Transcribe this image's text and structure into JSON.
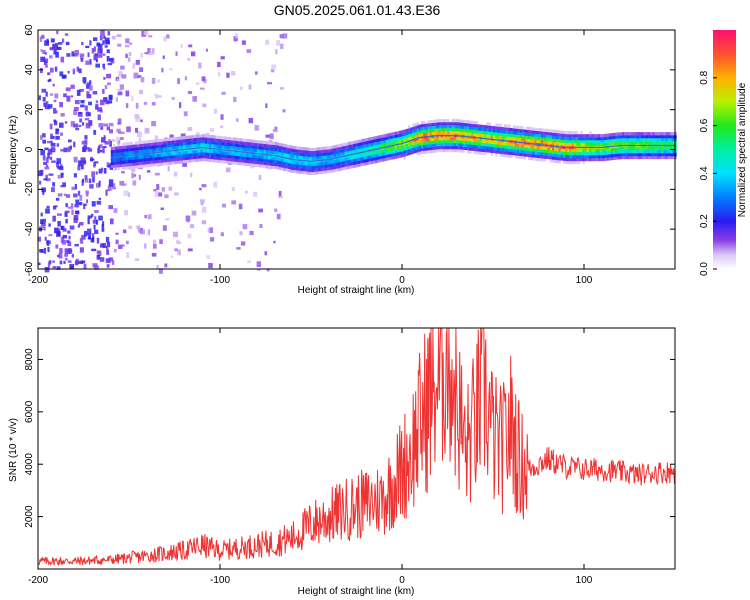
{
  "title": "GN05.2025.061.01.43.E36",
  "chart_data": [
    {
      "type": "heatmap",
      "xlabel": "Height of straight line (km)",
      "ylabel": "Frequency (Hz)",
      "xlim": [
        -200,
        150
      ],
      "ylim": [
        -60,
        60
      ],
      "xticks": [
        -200,
        -100,
        0,
        100
      ],
      "yticks": [
        -60,
        -40,
        -20,
        0,
        20,
        40,
        60
      ],
      "colorbar": {
        "label": "Normalized spectral amplitude",
        "range": [
          0,
          1
        ],
        "ticks": [
          0.0,
          0.2,
          0.4,
          0.6,
          0.8
        ]
      },
      "ridge": {
        "x": [
          -160,
          -150,
          -140,
          -130,
          -120,
          -110,
          -100,
          -90,
          -80,
          -70,
          -60,
          -50,
          -40,
          -30,
          -20,
          -10,
          0,
          10,
          20,
          30,
          40,
          50,
          60,
          70,
          80,
          90,
          100,
          110,
          120,
          130,
          140,
          150
        ],
        "y": [
          -4,
          -3,
          -2,
          -1,
          0,
          1,
          0,
          -1,
          -2,
          -3,
          -5,
          -6,
          -5,
          -3,
          -1,
          1,
          3,
          6,
          7,
          7,
          6,
          5,
          4,
          3,
          2,
          1,
          1,
          1,
          2,
          2,
          2,
          2
        ],
        "peak_amplitude": [
          0.3,
          0.35,
          0.35,
          0.4,
          0.45,
          0.45,
          0.4,
          0.4,
          0.4,
          0.45,
          0.45,
          0.45,
          0.4,
          0.45,
          0.55,
          0.65,
          0.75,
          0.95,
          0.95,
          0.95,
          0.9,
          0.85,
          0.9,
          0.95,
          0.95,
          0.95,
          0.8,
          0.7,
          0.7,
          0.7,
          0.65,
          0.6
        ]
      }
    },
    {
      "type": "line",
      "xlabel": "Height of straight line (km)",
      "ylabel": "SNR (10 * v/v)",
      "xlim": [
        -200,
        150
      ],
      "ylim": [
        0,
        9200
      ],
      "xticks": [
        -200,
        -100,
        0,
        100
      ],
      "yticks": [
        2000,
        4000,
        6000,
        8000
      ],
      "color": "#ee3333",
      "series": [
        {
          "x": [
            -200,
            -180,
            -160,
            -140,
            -120,
            -110,
            -100,
            -80,
            -70,
            -60,
            -50,
            -40,
            -30,
            -20,
            -10,
            0,
            5,
            10,
            15,
            20,
            25,
            30,
            35,
            40,
            45,
            50,
            55,
            60,
            65,
            70,
            80,
            90,
            100,
            110,
            120,
            130,
            140,
            150
          ],
          "y": [
            300,
            300,
            350,
            500,
            700,
            900,
            700,
            900,
            1000,
            1200,
            1700,
            2000,
            2300,
            2500,
            2700,
            3800,
            4500,
            5500,
            6500,
            7200,
            8800,
            6500,
            4500,
            5500,
            7000,
            5000,
            4500,
            5500,
            4000,
            3800,
            4200,
            3900,
            3800,
            3800,
            3700,
            3600,
            3700,
            3700
          ]
        }
      ]
    }
  ]
}
